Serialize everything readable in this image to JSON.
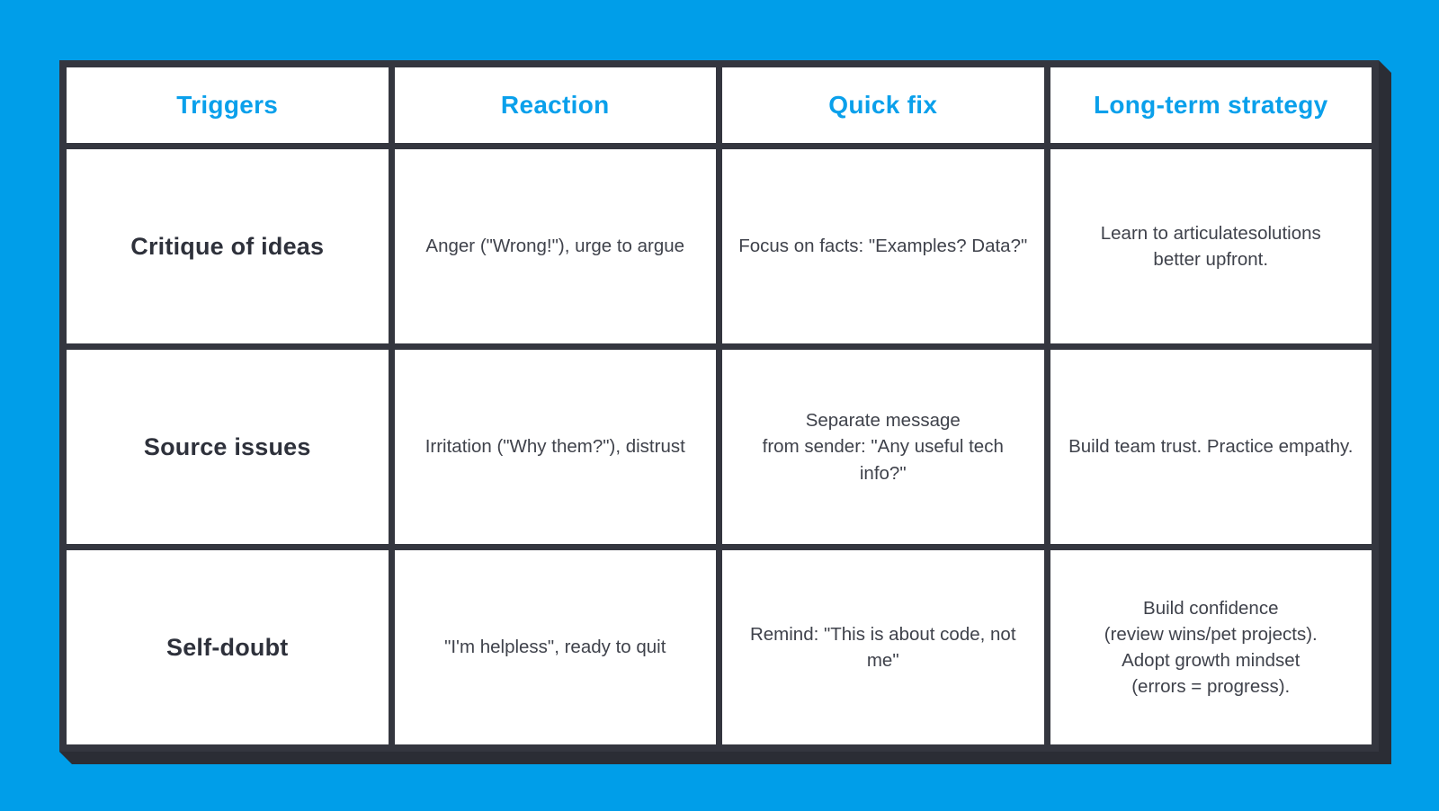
{
  "page": {
    "background_color": "#009EE9"
  },
  "table": {
    "border_color": "#34363F",
    "shadow_color": "#2B2D35",
    "header_text_color": "#0AA0EB",
    "headers": [
      "Triggers",
      "Reaction",
      "Quick fix",
      "Long-term strategy"
    ],
    "rows": [
      {
        "trigger": "Critique of ideas",
        "reaction": "Anger (\"Wrong!\"), urge to argue",
        "quick_fix": "Focus on facts: \"Examples? Data?\"",
        "long_term": "Learn to articulatesolutions\nbetter upfront."
      },
      {
        "trigger": "Source issues",
        "reaction": "Irritation (\"Why them?\"), distrust",
        "quick_fix": "Separate message\nfrom sender: \"Any useful tech info?\"",
        "long_term": "Build team trust. Practice empathy."
      },
      {
        "trigger": "Self-doubt",
        "reaction": "\"I'm helpless\", ready to quit",
        "quick_fix": "Remind: \"This is about code, not me\"",
        "long_term": "Build confidence\n(review wins/pet projects).\nAdopt growth mindset\n(errors = progress)."
      }
    ]
  }
}
